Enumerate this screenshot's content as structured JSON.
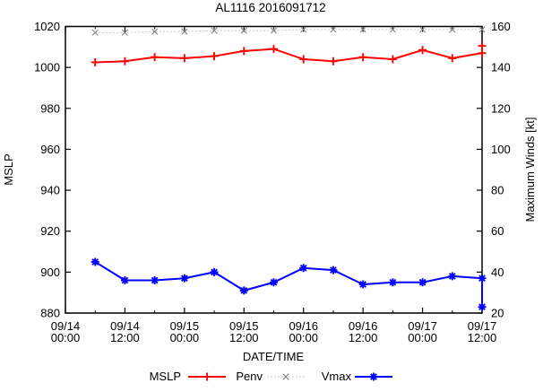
{
  "window": {
    "title": "AL1116 2016091712"
  },
  "chart_data": {
    "type": "line",
    "title": "AL1116 2016091712",
    "xlabel": "DATE/TIME",
    "ylabel_left": "MSLP",
    "ylabel_right": "Maximum Winds [kt]",
    "axes": {
      "left": {
        "min": 880,
        "max": 1020,
        "step": 20
      },
      "right": {
        "min": 20,
        "max": 160,
        "step": 20
      },
      "x": {
        "min_hours": 0,
        "max_hours": 84,
        "major_step_hours": 12,
        "minor_step_hours": 6
      }
    },
    "x_ticks": [
      {
        "t": 0,
        "date": "09/14",
        "time": "00:00"
      },
      {
        "t": 12,
        "date": "09/14",
        "time": "12:00"
      },
      {
        "t": 24,
        "date": "09/15",
        "time": "00:00"
      },
      {
        "t": 36,
        "date": "09/15",
        "time": "12:00"
      },
      {
        "t": 48,
        "date": "09/16",
        "time": "00:00"
      },
      {
        "t": 60,
        "date": "09/16",
        "time": "12:00"
      },
      {
        "t": 72,
        "date": "09/17",
        "time": "00:00"
      },
      {
        "t": 84,
        "date": "09/17",
        "time": "12:00"
      }
    ],
    "series": [
      {
        "name": "MSLP",
        "axis": "left",
        "color": "#ff0000",
        "marker": "plus",
        "line": "solid",
        "points": [
          {
            "t": 6,
            "v": 1002.5
          },
          {
            "t": 12,
            "v": 1003
          },
          {
            "t": 18,
            "v": 1005
          },
          {
            "t": 24,
            "v": 1004.5
          },
          {
            "t": 30,
            "v": 1005.5
          },
          {
            "t": 36,
            "v": 1008
          },
          {
            "t": 42,
            "v": 1009
          },
          {
            "t": 48,
            "v": 1004
          },
          {
            "t": 54,
            "v": 1003
          },
          {
            "t": 60,
            "v": 1005
          },
          {
            "t": 66,
            "v": 1004
          },
          {
            "t": 72,
            "v": 1008.5
          },
          {
            "t": 78,
            "v": 1004.5
          },
          {
            "t": 84,
            "v": 1007
          },
          {
            "t": 84,
            "v": 1010.5
          }
        ]
      },
      {
        "name": "Penv",
        "axis": "left",
        "color": "#b8b8b8",
        "marker_color": "#808080",
        "marker": "cross",
        "line": "dotted",
        "points": [
          {
            "t": 6,
            "v": 1017
          },
          {
            "t": 12,
            "v": 1017
          },
          {
            "t": 18,
            "v": 1017.5
          },
          {
            "t": 24,
            "v": 1017.5
          },
          {
            "t": 30,
            "v": 1018
          },
          {
            "t": 36,
            "v": 1018
          },
          {
            "t": 42,
            "v": 1018
          },
          {
            "t": 48,
            "v": 1018.5
          },
          {
            "t": 54,
            "v": 1018.5
          },
          {
            "t": 60,
            "v": 1018.5
          },
          {
            "t": 66,
            "v": 1018.5
          },
          {
            "t": 72,
            "v": 1018.5
          },
          {
            "t": 78,
            "v": 1018.5
          },
          {
            "t": 84,
            "v": 1018.5
          }
        ]
      },
      {
        "name": "Vmax",
        "axis": "right",
        "color": "#0000ff",
        "marker": "asterisk",
        "line": "solid",
        "points": [
          {
            "t": 6,
            "v": 45
          },
          {
            "t": 12,
            "v": 36
          },
          {
            "t": 18,
            "v": 36
          },
          {
            "t": 24,
            "v": 37
          },
          {
            "t": 30,
            "v": 40
          },
          {
            "t": 36,
            "v": 31
          },
          {
            "t": 42,
            "v": 35
          },
          {
            "t": 48,
            "v": 42
          },
          {
            "t": 54,
            "v": 41
          },
          {
            "t": 60,
            "v": 34
          },
          {
            "t": 66,
            "v": 35
          },
          {
            "t": 72,
            "v": 35
          },
          {
            "t": 78,
            "v": 38
          },
          {
            "t": 84,
            "v": 37
          },
          {
            "t": 84,
            "v": 23
          }
        ]
      }
    ],
    "legend": {
      "position": "bottom-center",
      "entries": [
        "MSLP",
        "Penv",
        "Vmax"
      ]
    },
    "colors": {
      "axis": "#000000",
      "background": "#ffffff"
    }
  }
}
